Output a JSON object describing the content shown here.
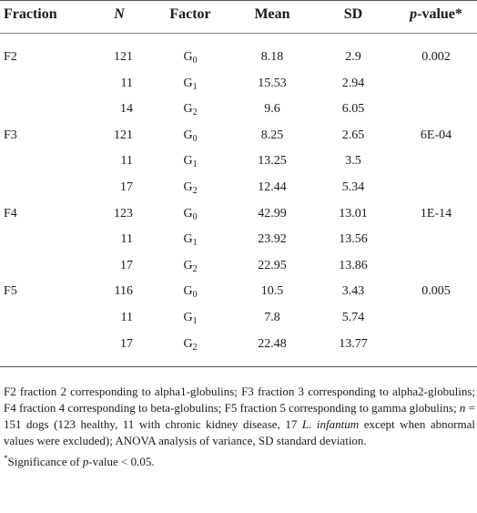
{
  "table": {
    "headers": {
      "fraction": "Fraction",
      "n": "N",
      "factor": "Factor",
      "mean": "Mean",
      "sd": "SD",
      "pvalue_p": "p",
      "pvalue_rest": "-value*"
    },
    "rows": [
      {
        "fraction": "F2",
        "n": "121",
        "factor_base": "G",
        "factor_sub": "0",
        "mean": "8.18",
        "sd": "2.9",
        "pvalue": "0.002"
      },
      {
        "fraction": "",
        "n": "11",
        "factor_base": "G",
        "factor_sub": "1",
        "mean": "15.53",
        "sd": "2.94",
        "pvalue": ""
      },
      {
        "fraction": "",
        "n": "14",
        "factor_base": "G",
        "factor_sub": "2",
        "mean": "9.6",
        "sd": "6.05",
        "pvalue": ""
      },
      {
        "fraction": "F3",
        "n": "121",
        "factor_base": "G",
        "factor_sub": "0",
        "mean": "8.25",
        "sd": "2.65",
        "pvalue": "6E-04"
      },
      {
        "fraction": "",
        "n": "11",
        "factor_base": "G",
        "factor_sub": "1",
        "mean": "13.25",
        "sd": "3.5",
        "pvalue": ""
      },
      {
        "fraction": "",
        "n": "17",
        "factor_base": "G",
        "factor_sub": "2",
        "mean": "12.44",
        "sd": "5.34",
        "pvalue": ""
      },
      {
        "fraction": "F4",
        "n": "123",
        "factor_base": "G",
        "factor_sub": "0",
        "mean": "42.99",
        "sd": "13.01",
        "pvalue": "1E-14"
      },
      {
        "fraction": "",
        "n": "11",
        "factor_base": "G",
        "factor_sub": "1",
        "mean": "23.92",
        "sd": "13.56",
        "pvalue": ""
      },
      {
        "fraction": "",
        "n": "17",
        "factor_base": "G",
        "factor_sub": "2",
        "mean": "22.95",
        "sd": "13.86",
        "pvalue": ""
      },
      {
        "fraction": "F5",
        "n": "116",
        "factor_base": "G",
        "factor_sub": "0",
        "mean": "10.5",
        "sd": "3.43",
        "pvalue": "0.005"
      },
      {
        "fraction": "",
        "n": "11",
        "factor_base": "G",
        "factor_sub": "1",
        "mean": "7.8",
        "sd": "5.74",
        "pvalue": ""
      },
      {
        "fraction": "",
        "n": "17",
        "factor_base": "G",
        "factor_sub": "2",
        "mean": "22.48",
        "sd": "13.77",
        "pvalue": ""
      }
    ]
  },
  "footnote": {
    "part1": "F2 fraction 2 corresponding to alpha1-globulins; F3 fraction 3 corresponding to alpha2-globulins; F4 fraction 4 corresponding to beta-globulins; F5 fraction 5 corresponding to gamma globulins; ",
    "n_symbol": "n",
    "part2": " = 151 dogs (123 healthy, 11 with chronic kidney disease, 17 ",
    "species": "L. infantum",
    "part3": " except when abnormal values were excluded); ANOVA analysis of variance, SD standard deviation.",
    "sig_star": "*",
    "sig_text_a": "Significance of ",
    "sig_p": "p",
    "sig_text_b": "-value < 0.05."
  }
}
